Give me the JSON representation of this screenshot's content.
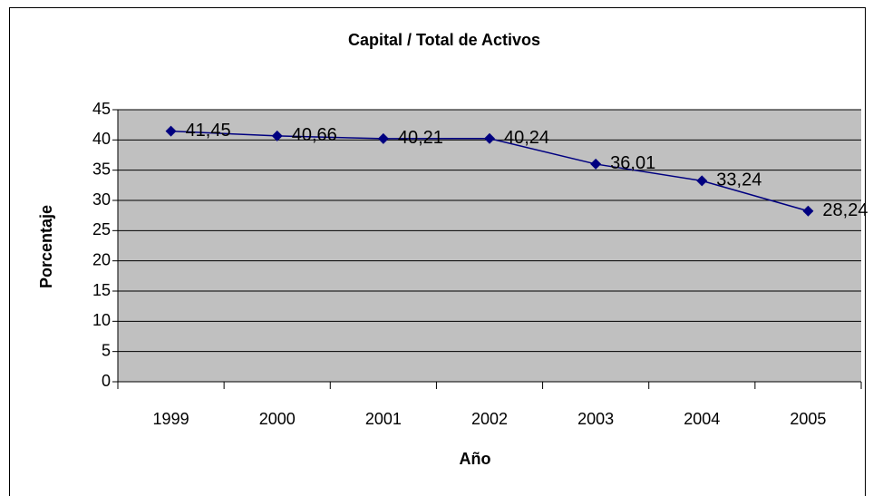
{
  "chart_data": {
    "type": "line",
    "title": "Capital / Total de Activos",
    "x_label": "Año",
    "y_label": "Porcentaje",
    "categories": [
      "1999",
      "2000",
      "2001",
      "2002",
      "2003",
      "2004",
      "2005"
    ],
    "series": [
      {
        "color": "#000080",
        "values": [
          41.45,
          40.66,
          40.21,
          40.24,
          36.01,
          33.24,
          28.24
        ],
        "value_labels": [
          "41,45",
          "40,66",
          "40,21",
          "40,24",
          "36,01",
          "33,24",
          "28,24"
        ]
      }
    ],
    "ylim": [
      0,
      45
    ],
    "yticks": [
      0,
      5,
      10,
      15,
      20,
      25,
      30,
      35,
      40,
      45
    ],
    "grid": true,
    "plot_background": "#c0c0c0"
  }
}
